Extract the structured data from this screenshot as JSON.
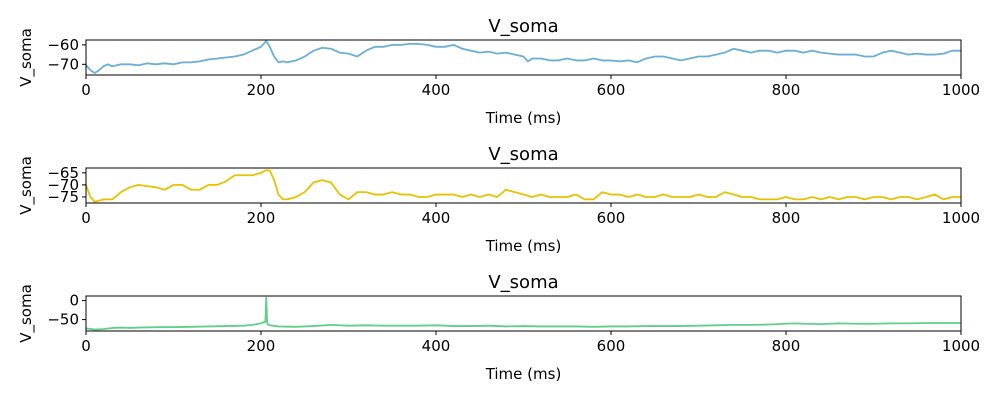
{
  "chart_data": [
    {
      "type": "line",
      "title": "V_soma",
      "xlabel": "Time (ms)",
      "ylabel": "V_soma",
      "xlim": [
        0,
        1000
      ],
      "ylim": [
        -75.5,
        -57.5
      ],
      "xticks": [
        0,
        200,
        400,
        600,
        800,
        1000
      ],
      "yticks": [
        -60,
        -70
      ],
      "color": "#6baed6",
      "series": [
        {
          "x": [
            0,
            5,
            10,
            15,
            20,
            25,
            30,
            40,
            50,
            60,
            70,
            80,
            90,
            100,
            110,
            120,
            130,
            140,
            150,
            160,
            170,
            180,
            190,
            200,
            206,
            210,
            215,
            220,
            225,
            230,
            240,
            250,
            260,
            270,
            280,
            290,
            300,
            310,
            320,
            330,
            340,
            350,
            360,
            370,
            380,
            390,
            400,
            410,
            420,
            430,
            440,
            450,
            460,
            470,
            480,
            490,
            500,
            505,
            510,
            520,
            530,
            540,
            550,
            560,
            570,
            580,
            590,
            600,
            610,
            620,
            630,
            640,
            650,
            660,
            670,
            680,
            690,
            700,
            710,
            720,
            730,
            740,
            750,
            760,
            770,
            780,
            790,
            800,
            810,
            820,
            830,
            840,
            850,
            860,
            870,
            880,
            890,
            900,
            910,
            920,
            930,
            940,
            950,
            960,
            970,
            980,
            990,
            1000
          ],
          "y": [
            -70.5,
            -73,
            -74.5,
            -73,
            -71,
            -70,
            -71,
            -70,
            -70,
            -70.5,
            -69.5,
            -70,
            -69.5,
            -70,
            -69,
            -69,
            -68.5,
            -67.5,
            -67,
            -66.5,
            -66,
            -65,
            -63,
            -61,
            -58,
            -61,
            -66,
            -69,
            -68.5,
            -69,
            -68,
            -66,
            -63,
            -61.5,
            -62,
            -64,
            -64.5,
            -66,
            -63,
            -61,
            -61,
            -60,
            -60,
            -59.5,
            -59.5,
            -60,
            -61,
            -61,
            -60,
            -62,
            -63,
            -64,
            -63.5,
            -64.5,
            -64,
            -65,
            -66,
            -68.5,
            -67,
            -67,
            -68,
            -68,
            -67,
            -68,
            -68,
            -67,
            -68,
            -68,
            -68.5,
            -68,
            -69,
            -67,
            -66,
            -66,
            -67,
            -68,
            -67,
            -66,
            -66,
            -65,
            -64,
            -62,
            -63,
            -64,
            -63,
            -63,
            -64,
            -63,
            -63,
            -64,
            -63,
            -64,
            -64.5,
            -65,
            -65,
            -65,
            -66,
            -66,
            -64,
            -63,
            -64,
            -65,
            -64.5,
            -65,
            -65,
            -64.5,
            -63,
            -63
          ]
        }
      ]
    },
    {
      "type": "line",
      "title": "V_soma",
      "xlabel": "Time (ms)",
      "ylabel": "V_soma",
      "xlim": [
        0,
        1000
      ],
      "ylim": [
        -77.5,
        -63
      ],
      "xticks": [
        0,
        200,
        400,
        600,
        800,
        1000
      ],
      "yticks": [
        -65,
        -70,
        -75
      ],
      "color": "#e6c200",
      "series": [
        {
          "x": [
            0,
            5,
            10,
            15,
            20,
            30,
            40,
            45,
            50,
            60,
            70,
            80,
            90,
            100,
            110,
            120,
            130,
            140,
            150,
            160,
            170,
            180,
            190,
            200,
            205,
            210,
            215,
            220,
            225,
            230,
            240,
            250,
            260,
            270,
            280,
            290,
            300,
            310,
            320,
            330,
            340,
            350,
            360,
            370,
            380,
            390,
            400,
            410,
            420,
            430,
            440,
            450,
            460,
            470,
            480,
            490,
            500,
            510,
            520,
            530,
            540,
            550,
            560,
            570,
            580,
            590,
            600,
            610,
            620,
            630,
            640,
            650,
            660,
            670,
            680,
            690,
            700,
            710,
            720,
            730,
            740,
            750,
            760,
            770,
            780,
            790,
            800,
            810,
            820,
            830,
            840,
            850,
            860,
            870,
            880,
            890,
            900,
            910,
            920,
            930,
            940,
            950,
            960,
            970,
            980,
            990,
            1000
          ],
          "y": [
            -70,
            -75,
            -77,
            -76.5,
            -76,
            -76,
            -73,
            -72,
            -71,
            -70,
            -70.5,
            -71,
            -72,
            -70,
            -70,
            -72,
            -72,
            -70,
            -70,
            -68.5,
            -66,
            -66,
            -66,
            -65,
            -64,
            -64,
            -68,
            -74,
            -76,
            -76,
            -75,
            -73,
            -69,
            -68,
            -69,
            -74,
            -76,
            -73,
            -73,
            -74,
            -74,
            -73,
            -74,
            -74,
            -75,
            -75,
            -74,
            -74,
            -74,
            -75,
            -74,
            -75,
            -74,
            -75,
            -72,
            -73,
            -74,
            -75,
            -74,
            -75,
            -75,
            -75,
            -74,
            -76,
            -76,
            -73,
            -74,
            -74,
            -75,
            -74,
            -75,
            -75,
            -74,
            -75,
            -75,
            -75,
            -74,
            -75,
            -75,
            -73,
            -74,
            -75,
            -75,
            -76,
            -76,
            -76,
            -75,
            -76,
            -76,
            -75,
            -76,
            -75,
            -76,
            -75,
            -75,
            -76,
            -75,
            -75,
            -76,
            -75,
            -75,
            -76,
            -75,
            -74,
            -76,
            -75,
            -75
          ]
        }
      ]
    },
    {
      "type": "line",
      "title": "V_soma",
      "xlabel": "Time (ms)",
      "ylabel": "V_soma",
      "xlim": [
        0,
        1000
      ],
      "ylim": [
        -80,
        12
      ],
      "xticks": [
        0,
        200,
        400,
        600,
        800,
        1000
      ],
      "yticks": [
        0,
        -50
      ],
      "color": "#5fcf8a",
      "series": [
        {
          "x": [
            0,
            10,
            20,
            30,
            40,
            50,
            60,
            80,
            100,
            120,
            140,
            160,
            180,
            190,
            200,
            205,
            206,
            207,
            208,
            210,
            220,
            240,
            260,
            280,
            300,
            320,
            340,
            360,
            380,
            400,
            420,
            440,
            460,
            480,
            500,
            520,
            540,
            560,
            580,
            600,
            620,
            640,
            660,
            680,
            700,
            720,
            740,
            760,
            780,
            800,
            810,
            820,
            840,
            860,
            880,
            900,
            920,
            940,
            960,
            980,
            1000
          ],
          "y": [
            -73,
            -76,
            -75,
            -72,
            -71,
            -72,
            -71,
            -70,
            -70,
            -69,
            -68,
            -67,
            -66,
            -64,
            -60,
            -55,
            8,
            -58,
            -63,
            -65,
            -68,
            -69,
            -67,
            -64,
            -66,
            -65,
            -66,
            -66,
            -66,
            -65,
            -67,
            -67,
            -66,
            -68,
            -67,
            -68,
            -68,
            -68,
            -69,
            -68,
            -68,
            -67,
            -67,
            -67,
            -66,
            -65,
            -64,
            -64,
            -63,
            -61,
            -60,
            -61,
            -62,
            -60,
            -61,
            -61,
            -60,
            -60,
            -59,
            -59,
            -59
          ]
        }
      ]
    }
  ]
}
